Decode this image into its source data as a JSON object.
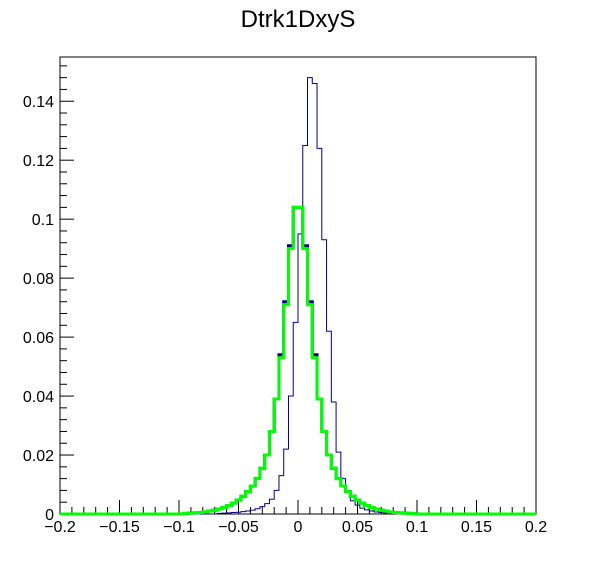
{
  "chart_data": {
    "type": "line",
    "title": "Dtrk1DxyS",
    "xlabel": "",
    "ylabel": "",
    "xlim": [
      -0.2,
      0.2
    ],
    "ylim": [
      0,
      0.155
    ],
    "grid": false,
    "x_ticks": [
      -0.2,
      -0.15,
      -0.1,
      -0.05,
      0,
      0.05,
      0.1,
      0.15,
      0.2
    ],
    "x_tick_labels": [
      "−0.2",
      "−0.15",
      "−0.1",
      "−0.05",
      "0",
      "0.05",
      "0.1",
      "0.15",
      "0.2"
    ],
    "y_ticks": [
      0,
      0.02,
      0.04,
      0.06,
      0.08,
      0.1,
      0.12,
      0.14
    ],
    "y_tick_labels": [
      "0",
      "0.02",
      "0.04",
      "0.06",
      "0.08",
      "0.1",
      "0.12",
      "0.14"
    ],
    "bin_edges_start": -0.2,
    "bin_width": 0.004,
    "series": [
      {
        "color": "#00008b",
        "style": "step-thin",
        "values": [
          0,
          0,
          0,
          0,
          0,
          0,
          0,
          0,
          0,
          0,
          0,
          0,
          0,
          0,
          0,
          0,
          0,
          0,
          0,
          0,
          0,
          0,
          0,
          0,
          0,
          0,
          0,
          0,
          0,
          0,
          0,
          0,
          0,
          0.0002,
          0.0003,
          0.0004,
          0.0005,
          0.0006,
          0.0008,
          0.001,
          0.0013,
          0.0018,
          0.0025,
          0.0035,
          0.005,
          0.008,
          0.013,
          0.022,
          0.04,
          0.065,
          0.095,
          0.125,
          0.148,
          0.146,
          0.124,
          0.093,
          0.062,
          0.038,
          0.021,
          0.012,
          0.0075,
          0.0045,
          0.003,
          0.002,
          0.0014,
          0.001,
          0.0007,
          0.0005,
          0.0003,
          0.0002,
          0.0001,
          0,
          0,
          0,
          0,
          0,
          0,
          0,
          0,
          0,
          0,
          0,
          0,
          0,
          0,
          0,
          0,
          0,
          0,
          0,
          0,
          0,
          0,
          0,
          0,
          0,
          0,
          0,
          0,
          0
        ]
      },
      {
        "color": "#00008b",
        "style": "step-thick",
        "values": [
          0,
          0,
          0,
          0,
          0,
          0,
          0,
          0,
          0,
          0,
          0,
          0,
          0,
          0,
          0,
          0,
          0,
          0,
          0,
          0,
          0,
          0,
          0,
          0,
          0,
          0,
          0.0002,
          0.0003,
          0.0004,
          0.0005,
          0.0007,
          0.001,
          0.0013,
          0.0017,
          0.0022,
          0.0029,
          0.0037,
          0.0047,
          0.006,
          0.0076,
          0.0095,
          0.012,
          0.0155,
          0.02,
          0.028,
          0.039,
          0.054,
          0.072,
          0.091,
          0.104,
          0.104,
          0.091,
          0.072,
          0.054,
          0.039,
          0.028,
          0.02,
          0.0155,
          0.012,
          0.0095,
          0.0076,
          0.006,
          0.0047,
          0.0037,
          0.0029,
          0.0022,
          0.0017,
          0.0013,
          0.001,
          0.0007,
          0.0005,
          0.0004,
          0.0003,
          0.0002,
          0.0001,
          0,
          0,
          0,
          0,
          0,
          0,
          0,
          0,
          0,
          0,
          0,
          0,
          0,
          0,
          0,
          0,
          0,
          0,
          0,
          0,
          0,
          0,
          0,
          0,
          0
        ]
      },
      {
        "color": "#00ff00",
        "style": "step-thick",
        "values": [
          0,
          0,
          0,
          0,
          0,
          0,
          0,
          0,
          0,
          0,
          0,
          0,
          0,
          0,
          0,
          0,
          0,
          0,
          0,
          0,
          0,
          0,
          0,
          0,
          0,
          0,
          0.0002,
          0.0003,
          0.0004,
          0.0005,
          0.0007,
          0.001,
          0.0013,
          0.0017,
          0.0022,
          0.0029,
          0.0037,
          0.0047,
          0.006,
          0.0076,
          0.0095,
          0.012,
          0.0155,
          0.02,
          0.028,
          0.039,
          0.053,
          0.071,
          0.09,
          0.104,
          0.104,
          0.09,
          0.071,
          0.053,
          0.039,
          0.028,
          0.02,
          0.0155,
          0.012,
          0.0095,
          0.0076,
          0.006,
          0.0047,
          0.0037,
          0.0029,
          0.0022,
          0.0017,
          0.0013,
          0.001,
          0.0007,
          0.0005,
          0.0004,
          0.0003,
          0.0002,
          0.0001,
          0,
          0,
          0,
          0,
          0,
          0,
          0,
          0,
          0,
          0,
          0,
          0,
          0,
          0,
          0,
          0,
          0,
          0,
          0,
          0,
          0,
          0,
          0,
          0,
          0
        ]
      }
    ]
  }
}
